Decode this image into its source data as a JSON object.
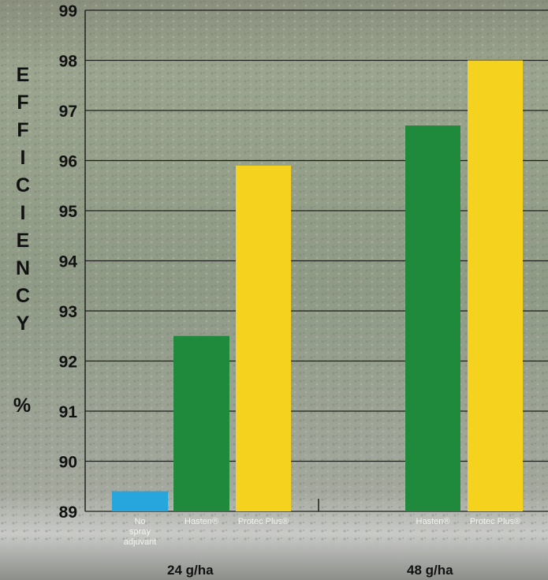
{
  "chart_data": {
    "type": "bar",
    "title": "",
    "ylabel": "EFFICIENCY",
    "yunit": "%",
    "ylim": [
      89,
      99
    ],
    "yticks": [
      "89",
      "90",
      "91",
      "92",
      "93",
      "94",
      "95",
      "96",
      "97",
      "98",
      "99"
    ],
    "grid": true,
    "bars": [
      {
        "label": "No spray adjuvant",
        "label_lines": [
          "No",
          "spray",
          "adjuvant"
        ],
        "group": "24 g/ha",
        "value": 89.4,
        "color": "#27a6de"
      },
      {
        "label": "Hasten®",
        "label_lines": [
          "Hasten®"
        ],
        "group": "24 g/ha",
        "value": 92.5,
        "color": "#1f8a3c"
      },
      {
        "label": "Protec Plus®",
        "label_lines": [
          "Protec Plus®"
        ],
        "group": "24 g/ha",
        "value": 95.9,
        "color": "#f5d21e"
      },
      {
        "label": "Hasten®",
        "label_lines": [
          "Hasten®"
        ],
        "group": "48 g/ha",
        "value": 96.7,
        "color": "#1f8a3c"
      },
      {
        "label": "Protec Plus®",
        "label_lines": [
          "Protec Plus®"
        ],
        "group": "48 g/ha",
        "value": 98.0,
        "color": "#f5d21e"
      }
    ],
    "groups": [
      "24 g/ha",
      "48 g/ha"
    ]
  }
}
